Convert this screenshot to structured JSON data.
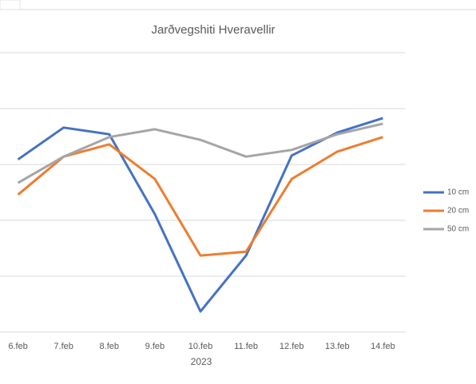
{
  "chart_data": {
    "type": "line",
    "title": "Jarðvegshiti Hveravellir",
    "x_label": "2023",
    "categories": [
      "6.feb",
      "7.feb",
      "8.feb",
      "9.feb",
      "10.feb",
      "11.feb",
      "12.feb",
      "13.feb",
      "14.feb"
    ],
    "series": [
      {
        "name": "10 cm",
        "color": "#4472c4",
        "values": [
          3.09,
          3.66,
          3.54,
          2.11,
          0.37,
          1.37,
          3.16,
          3.57,
          3.83
        ]
      },
      {
        "name": "20 cm",
        "color": "#ed7d31",
        "values": [
          2.46,
          3.14,
          3.36,
          2.74,
          1.37,
          1.44,
          2.74,
          3.23,
          3.49
        ]
      },
      {
        "name": "50 cm",
        "color": "#a5a5a5",
        "values": [
          2.67,
          3.14,
          3.49,
          3.63,
          3.44,
          3.14,
          3.26,
          3.54,
          3.73
        ]
      }
    ],
    "ylim": [
      0,
      5
    ],
    "yticks": [
      0,
      1,
      2,
      3,
      4,
      5
    ],
    "grid": true,
    "legend": "right"
  }
}
